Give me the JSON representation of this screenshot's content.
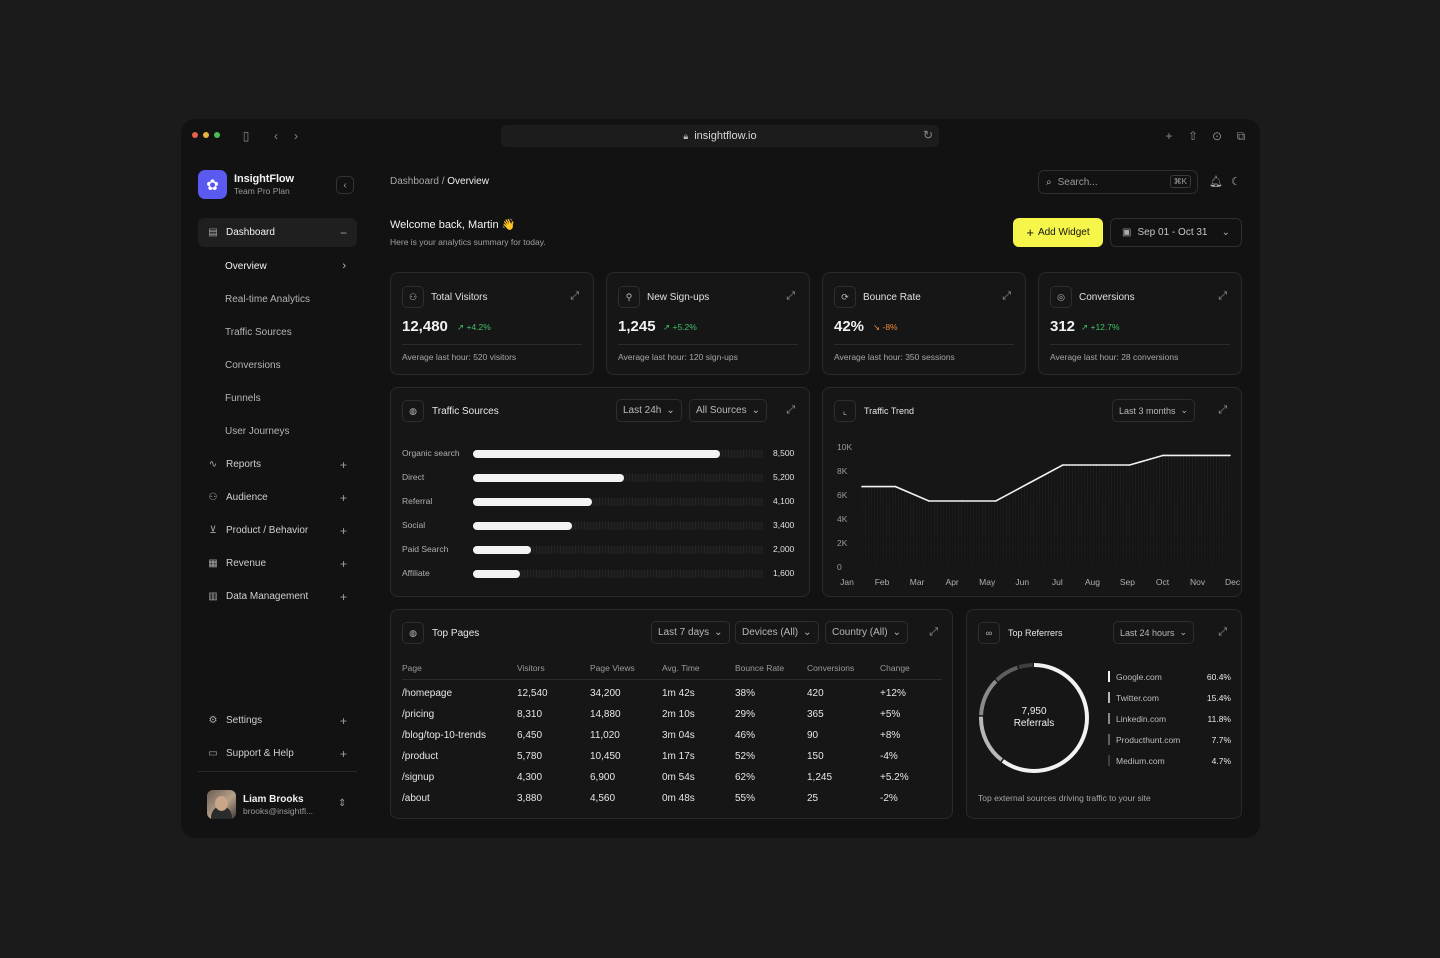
{
  "browser": {
    "url": "insightflow.io"
  },
  "brand": {
    "name": "InsightFlow",
    "plan": "Team Pro Plan"
  },
  "nav": {
    "dashboard": "Dashboard",
    "sub": [
      "Overview",
      "Real-time Analytics",
      "Traffic Sources",
      "Conversions",
      "Funnels",
      "User Journeys"
    ],
    "sections": [
      "Reports",
      "Audience",
      "Product / Behavior",
      "Revenue",
      "Data Management"
    ],
    "settings": "Settings",
    "support": "Support & Help"
  },
  "user": {
    "name": "Liam Brooks",
    "email": "brooks@insightfl..."
  },
  "header": {
    "breadcrumb_parent": "Dashboard",
    "breadcrumb_sep": " / ",
    "breadcrumb_current": "Overview",
    "search_placeholder": "Search...",
    "search_shortcut": "⌘K",
    "welcome": "Welcome back, Martin 👋",
    "welcome_sub": "Here is your analytics summary for today.",
    "add_widget": "Add Widget",
    "date_range": "Sep 01 - Oct 31"
  },
  "stats": [
    {
      "title": "Total Visitors",
      "value": "12,480",
      "change": "+4.2%",
      "direction": "up",
      "footer": "Average last hour: 520 visitors"
    },
    {
      "title": "New Sign-ups",
      "value": "1,245",
      "change": "+5.2%",
      "direction": "up",
      "footer": "Average last hour: 120 sign-ups"
    },
    {
      "title": "Bounce Rate",
      "value": "42%",
      "change": "-8%",
      "direction": "down",
      "footer": "Average last hour: 350 sessions"
    },
    {
      "title": "Conversions",
      "value": "312",
      "change": "+12.7%",
      "direction": "up",
      "footer": "Average last hour: 28 conversions"
    }
  ],
  "traffic_sources": {
    "title": "Traffic Sources",
    "filter_time": "Last 24h",
    "filter_source": "All Sources",
    "max": 10000,
    "rows": [
      {
        "label": "Organic search",
        "value": 8500,
        "display": "8,500"
      },
      {
        "label": "Direct",
        "value": 5200,
        "display": "5,200"
      },
      {
        "label": "Referral",
        "value": 4100,
        "display": "4,100"
      },
      {
        "label": "Social",
        "value": 3400,
        "display": "3,400"
      },
      {
        "label": "Paid Search",
        "value": 2000,
        "display": "2,000"
      },
      {
        "label": "Affiliate",
        "value": 1600,
        "display": "1,600"
      }
    ]
  },
  "traffic_trend": {
    "title": "Traffic Trend",
    "filter": "Last 3 months"
  },
  "chart_data": {
    "type": "line",
    "title": "Traffic Trend",
    "categories": [
      "Jan",
      "Feb",
      "Mar",
      "Apr",
      "May",
      "Jun",
      "Jul",
      "Aug",
      "Sep",
      "Oct",
      "Nov",
      "Dec"
    ],
    "y_ticks": [
      "10K",
      "8K",
      "6K",
      "4K",
      "2K",
      "0"
    ],
    "ylim": [
      0,
      10000
    ],
    "series": [
      {
        "values": [
          6700,
          6700,
          5500,
          5500,
          5500,
          7000,
          8500,
          8500,
          8500,
          9300,
          9300,
          9300
        ]
      }
    ],
    "grid": false
  },
  "top_pages": {
    "title": "Top Pages",
    "filters": [
      "Last 7 days",
      "Devices (All)",
      "Country (All)"
    ],
    "columns": [
      "Page",
      "Visitors",
      "Page Views",
      "Avg. Time",
      "Bounce Rate",
      "Conversions",
      "Change"
    ],
    "rows": [
      [
        "/homepage",
        "12,540",
        "34,200",
        "1m 42s",
        "38%",
        "420",
        "+12%"
      ],
      [
        "/pricing",
        "8,310",
        "14,880",
        "2m 10s",
        "29%",
        "365",
        "+5%"
      ],
      [
        "/blog/top-10-trends",
        "6,450",
        "11,020",
        "3m 04s",
        "46%",
        "90",
        "+8%"
      ],
      [
        "/product",
        "5,780",
        "10,450",
        "1m 17s",
        "52%",
        "150",
        "-4%"
      ],
      [
        "/signup",
        "4,300",
        "6,900",
        "0m 54s",
        "62%",
        "1,245",
        "+5.2%"
      ],
      [
        "/about",
        "3,880",
        "4,560",
        "0m 48s",
        "55%",
        "25",
        "-2%"
      ]
    ]
  },
  "top_referrers": {
    "title": "Top Referrers",
    "filter": "Last 24 hours",
    "total": "7,950",
    "total_label": "Referrals",
    "caption": "Top external sources driving traffic to your site",
    "items": [
      {
        "name": "Google.com",
        "pct": "60.4%",
        "share": 60.4,
        "color": "#f2f2f2"
      },
      {
        "name": "Twitter.com",
        "pct": "15.4%",
        "share": 15.4,
        "color": "#b8b8b8"
      },
      {
        "name": "Linkedin.com",
        "pct": "11.8%",
        "share": 11.8,
        "color": "#8a8a8a"
      },
      {
        "name": "Producthunt.com",
        "pct": "7.7%",
        "share": 7.7,
        "color": "#5e5e5e"
      },
      {
        "name": "Medium.com",
        "pct": "4.7%",
        "share": 4.7,
        "color": "#3e3e3e"
      }
    ]
  }
}
